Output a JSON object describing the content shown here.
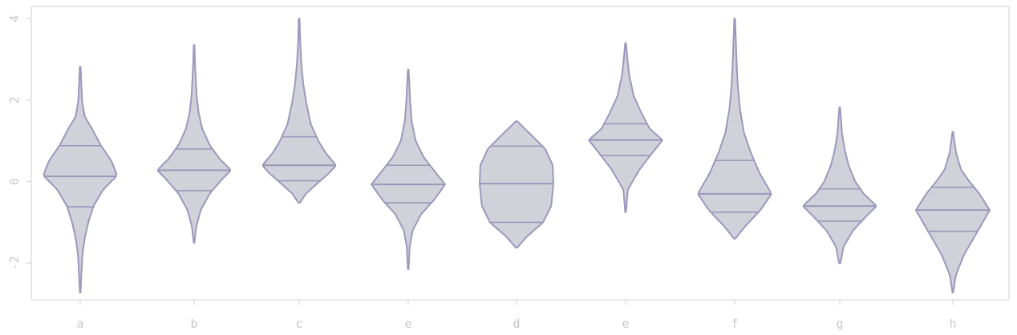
{
  "chart_data": {
    "type": "violin",
    "categories": [
      "a",
      "b",
      "c",
      "e",
      "d",
      "e",
      "f",
      "g",
      "h"
    ],
    "ylim": [
      -2.9,
      4.3
    ],
    "yticks": [
      -2,
      0,
      2,
      4
    ],
    "grid": false,
    "series": [
      {
        "category": "a",
        "min": -2.72,
        "max": 2.82,
        "q1": -0.62,
        "median": 0.13,
        "q3": 0.88,
        "mode": 0.15,
        "halfwidth": 0.46,
        "profile": [
          [
            -2.72,
            0.01
          ],
          [
            -2.3,
            0.03
          ],
          [
            -1.8,
            0.06
          ],
          [
            -1.4,
            0.12
          ],
          [
            -1.0,
            0.22
          ],
          [
            -0.6,
            0.36
          ],
          [
            -0.2,
            0.62
          ],
          [
            0.15,
            1.0
          ],
          [
            0.5,
            0.85
          ],
          [
            0.9,
            0.55
          ],
          [
            1.3,
            0.32
          ],
          [
            1.6,
            0.12
          ],
          [
            2.0,
            0.05
          ],
          [
            2.4,
            0.03
          ],
          [
            2.82,
            0.01
          ]
        ]
      },
      {
        "category": "b",
        "min": -1.5,
        "max": 3.35,
        "q1": -0.22,
        "median": 0.28,
        "q3": 0.8,
        "mode": 0.28,
        "halfwidth": 0.46,
        "profile": [
          [
            -1.5,
            0.01
          ],
          [
            -1.1,
            0.06
          ],
          [
            -0.7,
            0.18
          ],
          [
            -0.3,
            0.42
          ],
          [
            0.05,
            0.75
          ],
          [
            0.28,
            1.0
          ],
          [
            0.55,
            0.7
          ],
          [
            0.9,
            0.42
          ],
          [
            1.3,
            0.22
          ],
          [
            1.7,
            0.12
          ],
          [
            2.1,
            0.07
          ],
          [
            2.6,
            0.04
          ],
          [
            3.0,
            0.02
          ],
          [
            3.35,
            0.01
          ]
        ]
      },
      {
        "category": "c",
        "min": -0.52,
        "max": 4.0,
        "q1": 0.02,
        "median": 0.4,
        "q3": 1.1,
        "mode": 0.4,
        "halfwidth": 0.46,
        "profile": [
          [
            -0.52,
            0.02
          ],
          [
            -0.3,
            0.18
          ],
          [
            0.0,
            0.55
          ],
          [
            0.2,
            0.8
          ],
          [
            0.4,
            1.0
          ],
          [
            0.7,
            0.72
          ],
          [
            1.0,
            0.52
          ],
          [
            1.4,
            0.32
          ],
          [
            1.9,
            0.2
          ],
          [
            2.4,
            0.11
          ],
          [
            2.9,
            0.06
          ],
          [
            3.4,
            0.03
          ],
          [
            4.0,
            0.01
          ]
        ]
      },
      {
        "category": "e",
        "min": -2.15,
        "max": 2.75,
        "q1": -0.52,
        "median": -0.07,
        "q3": 0.4,
        "mode": -0.07,
        "halfwidth": 0.46,
        "profile": [
          [
            -2.15,
            0.01
          ],
          [
            -1.6,
            0.04
          ],
          [
            -1.2,
            0.12
          ],
          [
            -0.8,
            0.35
          ],
          [
            -0.45,
            0.7
          ],
          [
            -0.07,
            1.0
          ],
          [
            0.25,
            0.72
          ],
          [
            0.6,
            0.42
          ],
          [
            1.0,
            0.2
          ],
          [
            1.5,
            0.09
          ],
          [
            2.0,
            0.05
          ],
          [
            2.4,
            0.03
          ],
          [
            2.75,
            0.01
          ]
        ]
      },
      {
        "category": "d",
        "min": -1.62,
        "max": 1.48,
        "q1": -1.0,
        "median": -0.05,
        "q3": 0.87,
        "mode": 0.0,
        "halfwidth": 0.46,
        "profile": [
          [
            -1.62,
            0.02
          ],
          [
            -1.35,
            0.28
          ],
          [
            -1.0,
            0.72
          ],
          [
            -0.6,
            0.94
          ],
          [
            -0.05,
            1.0
          ],
          [
            0.4,
            0.98
          ],
          [
            0.8,
            0.78
          ],
          [
            1.1,
            0.45
          ],
          [
            1.3,
            0.22
          ],
          [
            1.48,
            0.02
          ]
        ]
      },
      {
        "category": "e",
        "min": -0.75,
        "max": 3.4,
        "q1": 0.64,
        "median": 1.02,
        "q3": 1.42,
        "mode": 1.02,
        "halfwidth": 0.46,
        "profile": [
          [
            -0.75,
            0.01
          ],
          [
            -0.2,
            0.06
          ],
          [
            0.3,
            0.38
          ],
          [
            0.7,
            0.72
          ],
          [
            1.02,
            1.0
          ],
          [
            1.3,
            0.65
          ],
          [
            1.7,
            0.42
          ],
          [
            2.1,
            0.22
          ],
          [
            2.6,
            0.1
          ],
          [
            3.0,
            0.05
          ],
          [
            3.4,
            0.01
          ]
        ]
      },
      {
        "category": "f",
        "min": -1.4,
        "max": 4.0,
        "q1": -0.75,
        "median": -0.3,
        "q3": 0.52,
        "mode": -0.3,
        "halfwidth": 0.46,
        "profile": [
          [
            -1.4,
            0.02
          ],
          [
            -1.1,
            0.28
          ],
          [
            -0.7,
            0.7
          ],
          [
            -0.3,
            1.0
          ],
          [
            0.2,
            0.68
          ],
          [
            0.7,
            0.44
          ],
          [
            1.2,
            0.25
          ],
          [
            1.8,
            0.14
          ],
          [
            2.4,
            0.08
          ],
          [
            3.0,
            0.05
          ],
          [
            3.5,
            0.03
          ],
          [
            4.0,
            0.01
          ]
        ]
      },
      {
        "category": "g",
        "min": -2.0,
        "max": 1.82,
        "q1": -0.97,
        "median": -0.6,
        "q3": -0.18,
        "mode": -0.6,
        "halfwidth": 0.46,
        "profile": [
          [
            -2.0,
            0.02
          ],
          [
            -1.6,
            0.1
          ],
          [
            -1.2,
            0.36
          ],
          [
            -0.85,
            0.72
          ],
          [
            -0.6,
            1.0
          ],
          [
            -0.3,
            0.65
          ],
          [
            0.0,
            0.42
          ],
          [
            0.4,
            0.24
          ],
          [
            0.8,
            0.13
          ],
          [
            1.2,
            0.06
          ],
          [
            1.6,
            0.03
          ],
          [
            1.82,
            0.01
          ]
        ]
      },
      {
        "category": "h",
        "min": -2.72,
        "max": 1.22,
        "q1": -1.22,
        "median": -0.7,
        "q3": -0.14,
        "mode": -0.7,
        "halfwidth": 0.46,
        "profile": [
          [
            -2.72,
            0.01
          ],
          [
            -2.3,
            0.08
          ],
          [
            -1.8,
            0.3
          ],
          [
            -1.3,
            0.62
          ],
          [
            -0.7,
            1.0
          ],
          [
            -0.3,
            0.72
          ],
          [
            0.0,
            0.45
          ],
          [
            0.3,
            0.22
          ],
          [
            0.7,
            0.09
          ],
          [
            1.0,
            0.04
          ],
          [
            1.22,
            0.01
          ]
        ]
      }
    ],
    "colors": {
      "fill": "#d1d1d9",
      "stroke": "#9c98bc",
      "axis": "#cfcfcf",
      "tick_text": "#c8c8c8"
    }
  }
}
